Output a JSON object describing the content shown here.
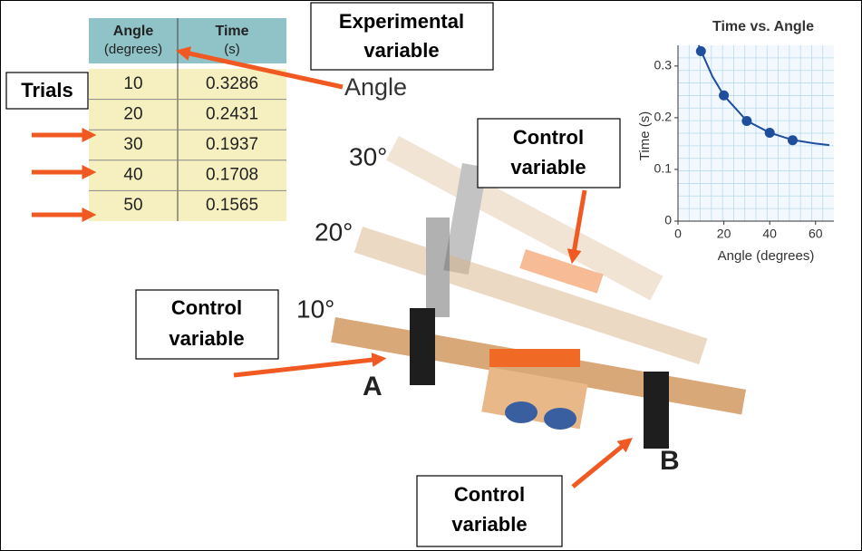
{
  "table": {
    "header": [
      {
        "name": "Angle",
        "unit": "(degrees)"
      },
      {
        "name": "Time",
        "unit": "(s)"
      }
    ],
    "rows": [
      [
        10,
        0.3286
      ],
      [
        20,
        0.2431
      ],
      [
        30,
        0.1937
      ],
      [
        40,
        0.1708
      ],
      [
        50,
        0.1565
      ]
    ]
  },
  "labels": {
    "experimental": [
      "Experimental",
      "variable"
    ],
    "trials": "Trials",
    "angle": "Angle",
    "control_top": [
      "Control",
      "variable"
    ],
    "control_left": [
      "Control",
      "variable"
    ],
    "control_bottom": [
      "Control",
      "variable"
    ],
    "angle_30": "30°",
    "angle_20": "20°",
    "angle_10": "10°",
    "point_a": "A",
    "point_b": "B"
  },
  "chart_data": {
    "type": "scatter",
    "title": "Time vs. Angle",
    "x_label": "Angle (degrees)",
    "y_label": "Time (s)",
    "x": [
      10,
      20,
      30,
      40,
      50
    ],
    "series": [
      {
        "name": "Time",
        "color": "#1f4e9c",
        "values": [
          0.3286,
          0.2431,
          0.1937,
          0.1708,
          0.1565
        ]
      }
    ],
    "fit": {
      "x": [
        9,
        15,
        20,
        30,
        40,
        50,
        60,
        66
      ],
      "values": [
        0.34,
        0.28,
        0.243,
        0.194,
        0.171,
        0.157,
        0.15,
        0.147
      ]
    },
    "xlim": [
      0,
      68
    ],
    "ylim": [
      0,
      0.34
    ],
    "xticks": [
      0,
      20,
      40,
      60
    ],
    "yticks": [
      0,
      0.1,
      0.2,
      0.3
    ],
    "grid": true
  }
}
